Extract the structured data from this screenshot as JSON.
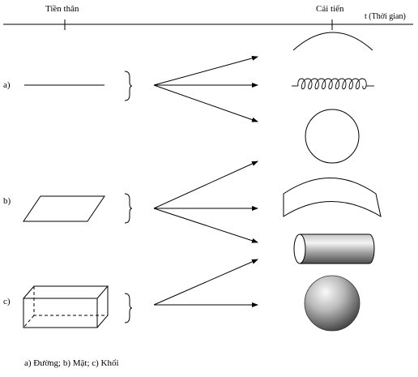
{
  "timeline": {
    "predecessor_label": "Tiền thân",
    "improved_label": "Cải tiến",
    "axis_label": "t (Thời gian)"
  },
  "rows": [
    {
      "label": "a)",
      "source": "line",
      "targets": [
        "arc",
        "spring",
        "circle"
      ]
    },
    {
      "label": "b)",
      "source": "parallelogram",
      "targets": [
        "curved-surface",
        "cylinder"
      ]
    },
    {
      "label": "c)",
      "source": "box",
      "targets": [
        "sphere"
      ]
    }
  ],
  "caption": "a) Đường; b) Mặt; c) Khối"
}
